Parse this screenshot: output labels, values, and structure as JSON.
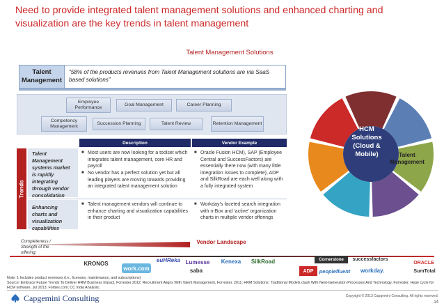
{
  "slide": {
    "title": "Need to provide integrated talent management solutions and enhanced charting and visualization are the key trends in talent management",
    "section_title": "Talent Management Solutions",
    "talent_label": "Talent Management",
    "talent_quote": "“58% of the products revenues from Talent Management solutions are via SaaS based solutions”"
  },
  "categories": {
    "employee_performance": "Employee Performance",
    "goal_management": "Goal Management",
    "career_planning": "Career Planning",
    "competency_management": "Competency Management",
    "succession_planning": "Succession Planning",
    "talent_review": "Talent Review",
    "retention_management": "Retention Management"
  },
  "trends": {
    "side_label": "Trends",
    "headers": {
      "description": "Description",
      "vendor_example": "Vendor Example"
    },
    "rows": [
      {
        "label": "Talent Management systems market is rapidly integrating through vendor consolidation",
        "description": [
          "Most users are now looking for a toolset which integrates talent management, core HR and payroll",
          "No vendor has a perfect solution yet but all leading players are moving towards providing an integrated talent management solution"
        ],
        "vendor_example": [
          "Oracle Fusion HCM), SAP (Employee Central and SuccessFactors) are essentially there now (with many little integration issues to complete), ADP and SilkRoad are each well along with a fully integrated system"
        ]
      },
      {
        "label": "Enhancing charts and visualization capabilities",
        "description": [
          "Talent management vendors will continue to enhance charting and visualization capabilities in their product"
        ],
        "vendor_example": [
          "Workday’s faceted search integration with n-Box and ‘active’ organization charts in multiple vendor offerings"
        ]
      }
    ]
  },
  "vendor_landscape": {
    "label": "Vendor Landscape",
    "completeness": "Completeness / Strength of the offering;",
    "logos": [
      "KRONOS",
      "work.com",
      "euHReka",
      "Lumesse",
      "saba",
      "Kenexa",
      "SilkRoad",
      "Cornerstone",
      "successfactors",
      "ORACLE",
      "ADP",
      "peoplefluent",
      "workday.",
      "SumTotal"
    ]
  },
  "wheel": {
    "center": "HCM Solutions (Cloud & Mobile)",
    "talent": "Talent Management",
    "colors": [
      "#7f2f2f",
      "#5b7fb5",
      "#8ea64a",
      "#6b4f8f",
      "#35a3c4",
      "#e8891d",
      "#cc2929"
    ]
  },
  "footer": {
    "note": "Note:     1 Includes product revenues (i.e., licenses, maintenance, and subscriptions)",
    "source": "Source:  Embrace Future Trends To Deliver HRM Business Impact, Forrester 2012; Recruitment Aligns With Talent Management, Forrester, 2011; HRM Solutions: Traditional Models clash With Next-Generation Processes And Technology, Forrester; Hype cycle for HCM software, Jul 2013; Forbes.com; CC India Analysis;",
    "brand": "Capgemini Consulting",
    "copyright": "Copyright © 2013 Capgemini Consulting. All rights reserved.",
    "page": "14"
  }
}
